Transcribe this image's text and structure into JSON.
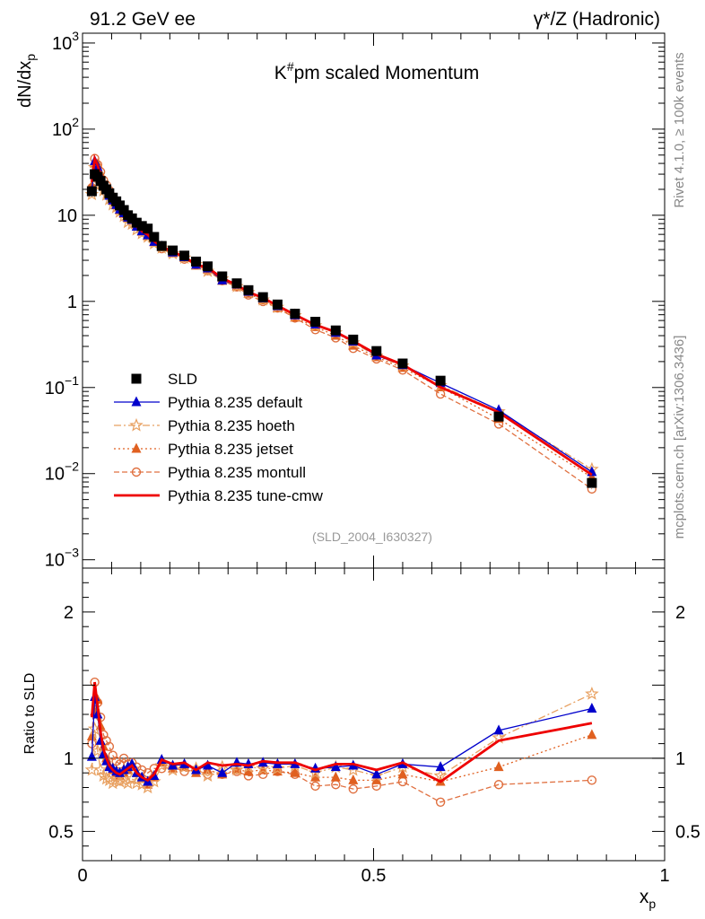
{
  "header": {
    "left": "91.2 GeV ee",
    "right": "γ*/Z (Hadronic)"
  },
  "side": {
    "rivet": "Rivet 4.1.0, ≥ 100k events",
    "mcplots": "mcplots.cern.ch [arXiv:1306.3436]"
  },
  "chart_data": {
    "type": "line",
    "title": "K#pm scaled Momentum",
    "title_parts": {
      "base": "K",
      "sup": "#",
      "rest": "pm scaled Momentum"
    },
    "analysis": "(SLD_2004_I630327)",
    "xlabel": "x",
    "xlabel_sub": "p",
    "ylabel": "dN/dx",
    "ylabel_sub": "p",
    "ratio_ylabel": "Ratio to SLD",
    "xlim": [
      0,
      1.0
    ],
    "ylim_log": [
      0.0008,
      1300
    ],
    "ratio_ylim": [
      0.3,
      2.3
    ],
    "x_ticks": [
      0,
      0.5,
      1
    ],
    "x_tick_labels": [
      "0",
      "0.5",
      "1"
    ],
    "y_ticks": [
      0.001,
      0.01,
      0.1,
      1,
      10,
      100,
      1000
    ],
    "y_tick_labels": [
      {
        "base": "10",
        "exp": "−3"
      },
      {
        "base": "10",
        "exp": "−2"
      },
      {
        "base": "10",
        "exp": "−1"
      },
      {
        "base": "1",
        "exp": ""
      },
      {
        "base": "10",
        "exp": ""
      },
      {
        "base": "10",
        "exp": "2"
      },
      {
        "base": "10",
        "exp": "3"
      }
    ],
    "ratio_ticks": [
      0.5,
      1,
      2
    ],
    "ratio_tick_labels": [
      "0.5",
      "1",
      "2"
    ],
    "x": [
      0.016,
      0.021,
      0.026,
      0.031,
      0.036,
      0.041,
      0.046,
      0.052,
      0.058,
      0.064,
      0.071,
      0.078,
      0.085,
      0.093,
      0.102,
      0.112,
      0.123,
      0.136,
      0.155,
      0.175,
      0.195,
      0.215,
      0.24,
      0.265,
      0.285,
      0.31,
      0.335,
      0.365,
      0.4,
      0.435,
      0.465,
      0.505,
      0.55,
      0.615,
      0.715,
      0.875
    ],
    "series": [
      {
        "name": "SLD",
        "color": "#000000",
        "values": [
          19,
          30,
          28,
          25,
          22,
          20,
          18,
          16,
          14.5,
          13,
          11.5,
          10,
          9.2,
          8.2,
          7.5,
          7.0,
          5.6,
          4.4,
          3.9,
          3.4,
          2.9,
          2.55,
          1.95,
          1.62,
          1.35,
          1.12,
          0.92,
          0.72,
          0.58,
          0.46,
          0.36,
          0.265,
          0.19,
          0.12,
          0.046,
          0.0078
        ],
        "ratio": [
          1,
          1,
          1,
          1,
          1,
          1,
          1,
          1,
          1,
          1,
          1,
          1,
          1,
          1,
          1,
          1,
          1,
          1,
          1,
          1,
          1,
          1,
          1,
          1,
          1,
          1,
          1,
          1,
          1,
          1,
          1,
          1,
          1,
          1,
          1,
          1
        ]
      },
      {
        "name": "Pythia 8.235 default",
        "color": "#0000cc",
        "ratio": [
          1.01,
          1.42,
          1.3,
          1.12,
          1.03,
          0.98,
          0.94,
          0.93,
          0.91,
          0.9,
          0.92,
          0.94,
          0.96,
          0.9,
          0.87,
          0.84,
          0.88,
          0.99,
          0.95,
          0.96,
          0.92,
          0.95,
          0.9,
          0.97,
          0.96,
          0.97,
          0.96,
          0.96,
          0.93,
          0.94,
          0.95,
          0.89,
          0.96,
          0.94,
          1.19,
          1.34
        ]
      },
      {
        "name": "Pythia 8.235 hoeth",
        "color": "#e8a060",
        "ratio": [
          0.92,
          1.2,
          1.05,
          0.92,
          0.88,
          0.86,
          0.85,
          0.83,
          0.85,
          0.84,
          0.85,
          0.83,
          0.86,
          0.83,
          0.82,
          0.8,
          0.84,
          0.95,
          0.92,
          0.94,
          0.93,
          0.88,
          0.94,
          0.92,
          0.94,
          0.93,
          0.93,
          0.95,
          0.9,
          0.94,
          0.92,
          0.88,
          0.94,
          0.88,
          1.14,
          1.44
        ]
      },
      {
        "name": "Pythia 8.235 jetset",
        "color": "#e06020",
        "ratio": [
          1.15,
          1.32,
          1.4,
          1.22,
          1.08,
          1.0,
          0.95,
          0.92,
          0.9,
          0.88,
          0.9,
          0.92,
          0.94,
          0.9,
          0.86,
          0.82,
          0.87,
          0.97,
          0.93,
          0.94,
          0.9,
          0.92,
          0.89,
          0.92,
          0.91,
          0.92,
          0.91,
          0.9,
          0.87,
          0.87,
          0.85,
          0.85,
          0.89,
          0.84,
          0.94,
          1.16
        ]
      },
      {
        "name": "Pythia 8.235 montull",
        "color": "#e07040",
        "ratio": [
          1.1,
          1.52,
          1.38,
          1.28,
          1.16,
          1.12,
          1.08,
          1.02,
          0.98,
          0.96,
          1.0,
          0.96,
          0.97,
          0.94,
          0.92,
          0.9,
          0.93,
          0.93,
          0.94,
          0.91,
          0.92,
          0.89,
          0.89,
          0.91,
          0.88,
          0.89,
          0.91,
          0.89,
          0.81,
          0.82,
          0.79,
          0.81,
          0.84,
          0.7,
          0.82,
          0.85
        ]
      },
      {
        "name": "Pythia 8.235 tune-cmw",
        "color": "#ee0000",
        "ratio": [
          1.28,
          1.52,
          1.35,
          1.18,
          1.06,
          1.0,
          0.95,
          0.92,
          0.9,
          0.89,
          0.91,
          0.93,
          0.95,
          0.9,
          0.87,
          0.85,
          0.89,
          0.99,
          0.96,
          0.97,
          0.92,
          0.97,
          0.95,
          0.96,
          0.95,
          0.98,
          0.97,
          0.97,
          0.92,
          0.96,
          0.96,
          0.92,
          0.97,
          0.84,
          1.12,
          1.24
        ]
      }
    ]
  }
}
